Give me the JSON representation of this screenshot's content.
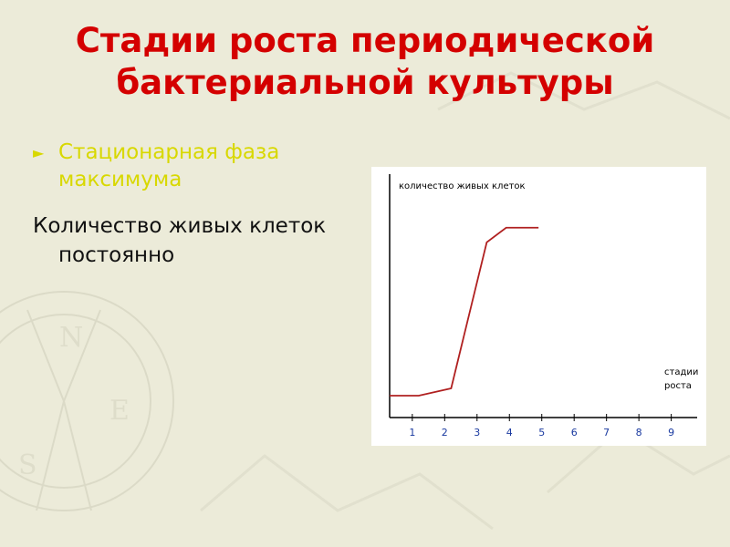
{
  "slide": {
    "title": "Стадии роста периодической бактериальной культуры",
    "bullet": "Стационарная фаза максимума",
    "paragraph": "Количество живых клеток постоянно"
  },
  "colors": {
    "title": "#d40000",
    "bullet": "#d8d800",
    "text": "#111111",
    "curve": "#b02020",
    "axis": "#000000",
    "tick_labels": "#1a3aa0",
    "background": "#ecebd9"
  },
  "chart_data": {
    "type": "line",
    "title": "",
    "ylabel": "количество живых клеток",
    "xlabel": "стадии роста",
    "x_ticks": [
      "1",
      "2",
      "3",
      "4",
      "5",
      "6",
      "7",
      "8",
      "9"
    ],
    "series": [
      {
        "x": [
          0.3,
          1.2,
          2.2,
          3.3,
          3.9,
          4.9
        ],
        "y": [
          0.09,
          0.09,
          0.12,
          0.72,
          0.78,
          0.78
        ]
      }
    ],
    "xlim": [
      0.3,
      9.8
    ],
    "ylim": [
      0,
      1
    ],
    "grid": false
  }
}
